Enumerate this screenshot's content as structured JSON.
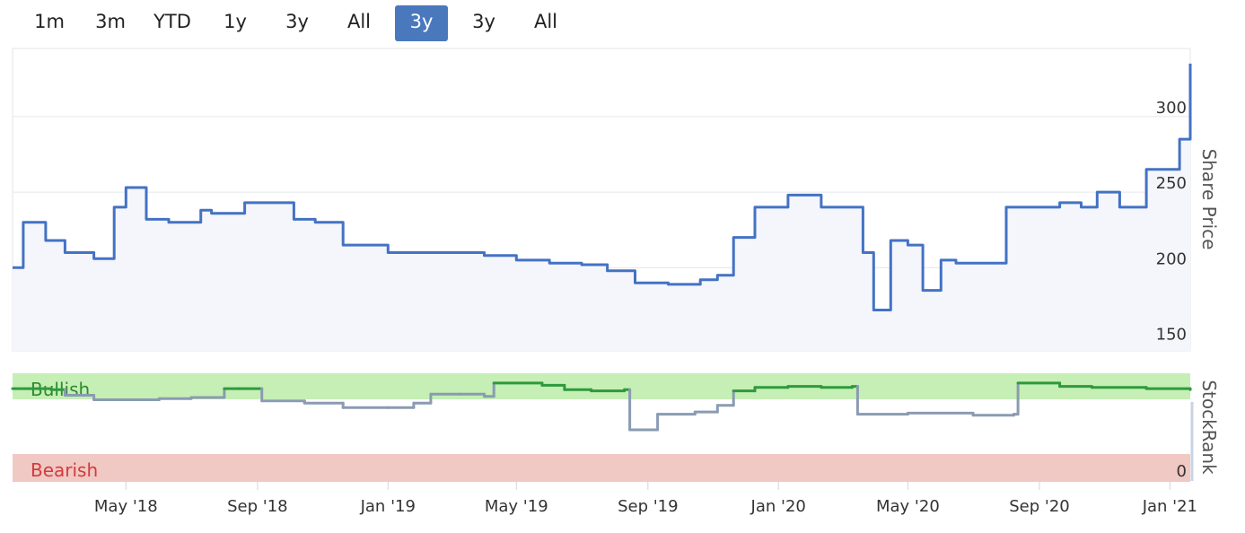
{
  "range_selector": {
    "buttons": [
      {
        "label": "1m",
        "active": false
      },
      {
        "label": "3m",
        "active": false
      },
      {
        "label": "YTD",
        "active": false
      },
      {
        "label": "1y",
        "active": false
      },
      {
        "label": "3y",
        "active": false
      },
      {
        "label": "All",
        "active": false
      },
      {
        "label": "3y",
        "active": true
      },
      {
        "label": "3y",
        "active": false
      },
      {
        "label": "All",
        "active": false
      }
    ]
  },
  "colors": {
    "price_line": "#4472c4",
    "price_fill": "#f4f6fb",
    "bullish_band": "#c5efb5",
    "bearish_band": "#f0c8c4",
    "bullish_line": "#2e9a3c",
    "neutral_line": "#8a9bb2",
    "bullish_text": "#2e8b2e",
    "bearish_text": "#d23b3b",
    "active_button": "#4a78bd"
  },
  "chart_data": [
    {
      "type": "line",
      "ylabel": "Share Price",
      "ylim": [
        145,
        345
      ],
      "yticks": [
        150,
        200,
        250,
        300
      ],
      "grid": true,
      "x_dates": [
        "2018-01-15",
        "2018-01-25",
        "2018-02-15",
        "2018-03-05",
        "2018-04-01",
        "2018-04-20",
        "2018-05-01",
        "2018-05-20",
        "2018-06-10",
        "2018-07-10",
        "2018-07-20",
        "2018-08-20",
        "2018-09-20",
        "2018-10-05",
        "2018-10-25",
        "2018-11-20",
        "2018-12-20",
        "2019-01-01",
        "2019-02-01",
        "2019-03-01",
        "2019-04-01",
        "2019-05-01",
        "2019-06-01",
        "2019-07-01",
        "2019-07-25",
        "2019-08-20",
        "2019-09-20",
        "2019-10-20",
        "2019-11-05",
        "2019-11-20",
        "2019-12-10",
        "2020-01-10",
        "2020-02-10",
        "2020-03-05",
        "2020-03-20",
        "2020-03-30",
        "2020-04-15",
        "2020-05-01",
        "2020-05-15",
        "2020-06-01",
        "2020-06-15",
        "2020-07-01",
        "2020-08-01",
        "2020-08-20",
        "2020-09-20",
        "2020-10-10",
        "2020-10-25",
        "2020-11-15",
        "2020-12-10",
        "2021-01-10",
        "2021-01-20"
      ],
      "series": [
        {
          "values": [
            200,
            230,
            218,
            210,
            206,
            240,
            253,
            232,
            230,
            238,
            236,
            243,
            243,
            232,
            230,
            215,
            215,
            210,
            210,
            210,
            208,
            205,
            203,
            202,
            198,
            190,
            189,
            192,
            195,
            220,
            240,
            248,
            240,
            240,
            210,
            172,
            218,
            215,
            185,
            205,
            203,
            203,
            240,
            240,
            243,
            240,
            250,
            240,
            265,
            285,
            335
          ]
        }
      ]
    },
    {
      "type": "line",
      "ylabel": "StockRank",
      "ylim": [
        0,
        100
      ],
      "band_labels": {
        "bullish": "Bullish",
        "bearish": "Bearish"
      },
      "yticks": [
        0
      ],
      "x_dates": [
        "2018-01-15",
        "2018-02-20",
        "2018-03-05",
        "2018-04-01",
        "2018-06-01",
        "2018-07-01",
        "2018-08-01",
        "2018-08-15",
        "2018-09-05",
        "2018-10-15",
        "2018-11-20",
        "2019-01-01",
        "2019-01-25",
        "2019-02-10",
        "2019-03-10",
        "2019-04-01",
        "2019-04-10",
        "2019-05-25",
        "2019-06-15",
        "2019-07-10",
        "2019-08-10",
        "2019-08-15",
        "2019-09-10",
        "2019-10-15",
        "2019-11-05",
        "2019-11-20",
        "2019-12-10",
        "2020-01-10",
        "2020-02-10",
        "2020-03-10",
        "2020-03-15",
        "2020-05-01",
        "2020-07-01",
        "2020-08-08",
        "2020-08-12",
        "2020-09-20",
        "2020-10-20",
        "2020-12-10",
        "2021-01-20"
      ],
      "series": [
        {
          "values": [
            83,
            82,
            77,
            73,
            74,
            75,
            83,
            83,
            72,
            70,
            66,
            66,
            70,
            78,
            78,
            76,
            88,
            86,
            82,
            81,
            82,
            46,
            60,
            62,
            68,
            81,
            84,
            85,
            84,
            85,
            60,
            61,
            59,
            60,
            88,
            85,
            84,
            83,
            82
          ]
        }
      ]
    },
    {
      "type": "timeline",
      "xlim": [
        "2018-01-15",
        "2021-01-20"
      ],
      "xticks": [
        {
          "date": "2018-05-01",
          "label": "May '18"
        },
        {
          "date": "2018-09-01",
          "label": "Sep '18"
        },
        {
          "date": "2019-01-01",
          "label": "Jan '19"
        },
        {
          "date": "2019-05-01",
          "label": "May '19"
        },
        {
          "date": "2019-09-01",
          "label": "Sep '19"
        },
        {
          "date": "2020-01-01",
          "label": "Jan '20"
        },
        {
          "date": "2020-05-01",
          "label": "May '20"
        },
        {
          "date": "2020-09-01",
          "label": "Sep '20"
        },
        {
          "date": "2021-01-01",
          "label": "Jan '21"
        }
      ]
    }
  ]
}
